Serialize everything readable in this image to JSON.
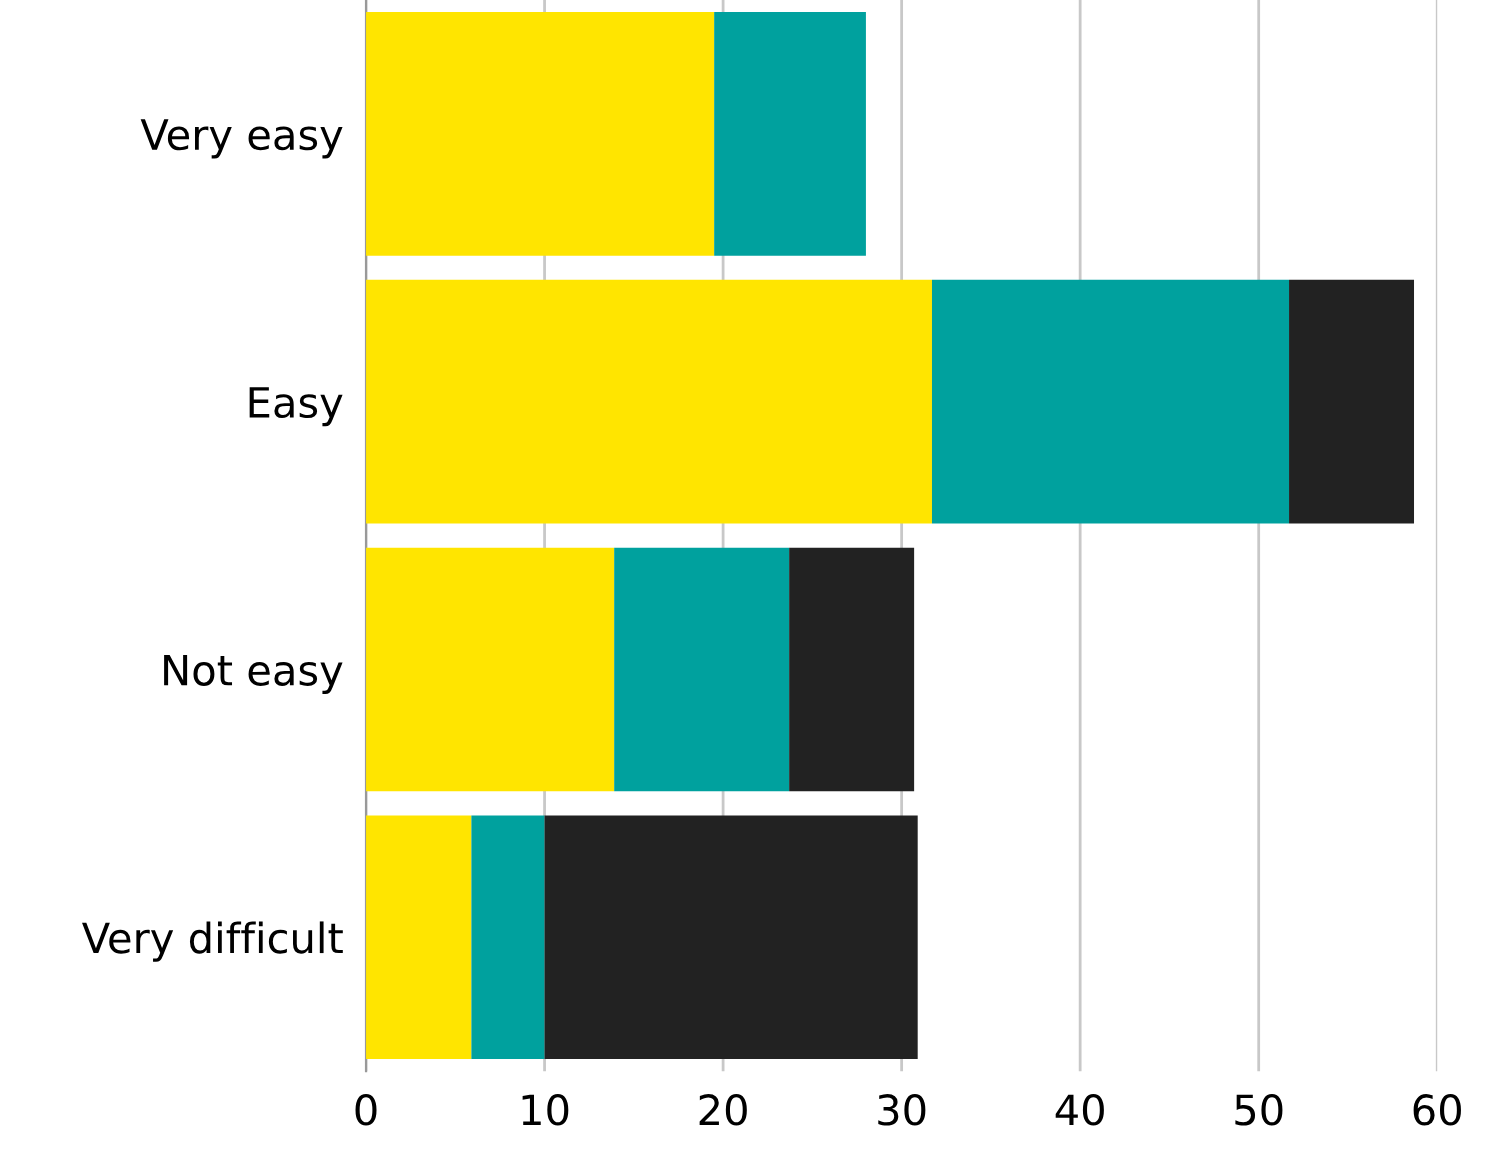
{
  "chart_data": {
    "type": "bar",
    "orientation": "horizontal",
    "stacked": true,
    "categories": [
      "Very easy",
      "Easy",
      "Not easy",
      "Very difficult"
    ],
    "series": [
      {
        "color": "#ffe500",
        "values": [
          19.5,
          31.7,
          13.9,
          5.9
        ]
      },
      {
        "color": "#00a19e",
        "values": [
          8.5,
          20,
          9.8,
          4.1
        ]
      },
      {
        "color": "#222222",
        "values": [
          null,
          7,
          7,
          20.9
        ]
      }
    ],
    "xlim": [
      0,
      60
    ],
    "xticks": [
      0,
      10,
      20,
      30,
      40,
      50,
      60
    ],
    "grid": "x",
    "legend": false
  }
}
